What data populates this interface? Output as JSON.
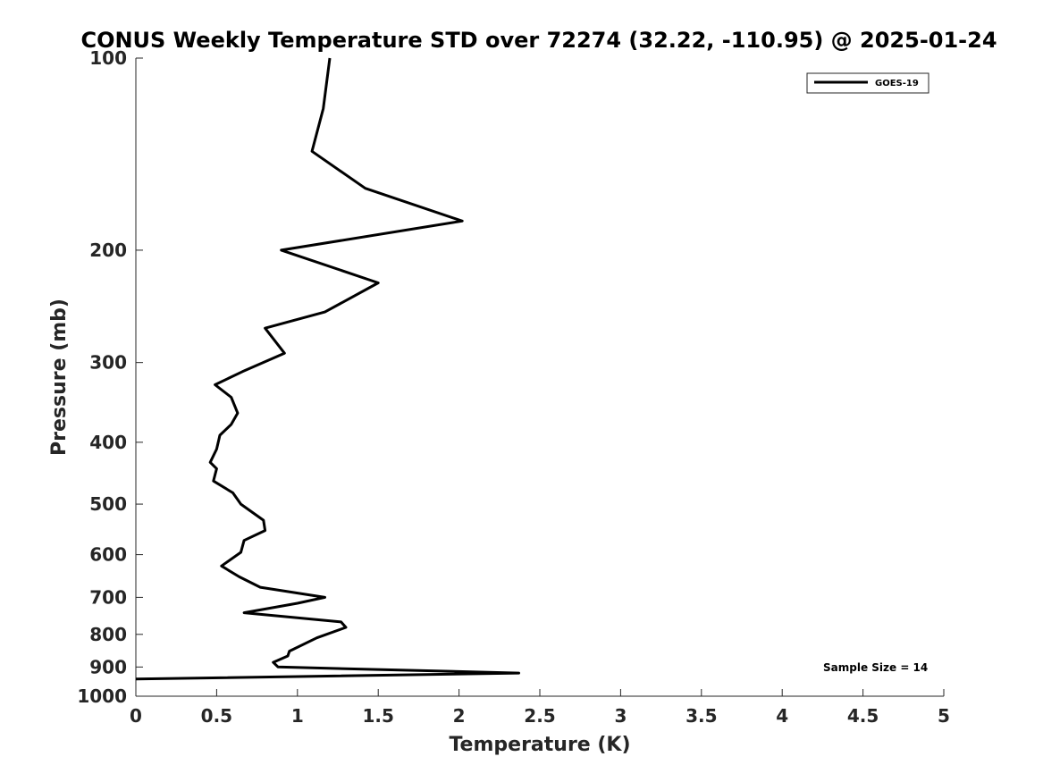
{
  "chart_data": {
    "type": "line",
    "title": "CONUS Weekly Temperature STD over 72274 (32.22, -110.95) @ 2025-01-24",
    "xlabel": "Temperature (K)",
    "ylabel": "Pressure (mb)",
    "xlim": [
      0,
      5
    ],
    "ylim": [
      1000,
      100
    ],
    "y_scale": "log",
    "y_reversed": true,
    "grid": false,
    "legend_position": "top-right",
    "x_ticks": [
      "0",
      "0.5",
      "1",
      "1.5",
      "2",
      "2.5",
      "3",
      "3.5",
      "4",
      "4.5",
      "5"
    ],
    "y_ticks": [
      "100",
      "200",
      "300",
      "400",
      "500",
      "600",
      "700",
      "800",
      "900",
      "1000"
    ],
    "series": [
      {
        "name": "GOES-19",
        "color": "#000000",
        "x": [
          1.2,
          1.16,
          1.09,
          1.42,
          2.02,
          0.9,
          1.5,
          1.17,
          0.8,
          0.92,
          0.66,
          0.49,
          0.59,
          0.63,
          0.59,
          0.52,
          0.5,
          0.46,
          0.5,
          0.48,
          0.6,
          0.65,
          0.79,
          0.8,
          0.67,
          0.65,
          0.53,
          0.64,
          0.77,
          1.17,
          1.0,
          0.67,
          1.27,
          1.3,
          1.12,
          0.95,
          0.94,
          0.85,
          0.88,
          2.37,
          0
        ],
        "y": [
          100,
          120,
          140,
          160,
          180,
          200,
          225,
          250,
          265,
          290,
          310,
          325,
          340,
          360,
          375,
          390,
          410,
          430,
          440,
          460,
          480,
          500,
          530,
          550,
          570,
          595,
          625,
          650,
          675,
          700,
          715,
          740,
          765,
          780,
          810,
          850,
          865,
          885,
          900,
          920,
          940
        ]
      }
    ],
    "annotation": "Sample Size = 14"
  }
}
